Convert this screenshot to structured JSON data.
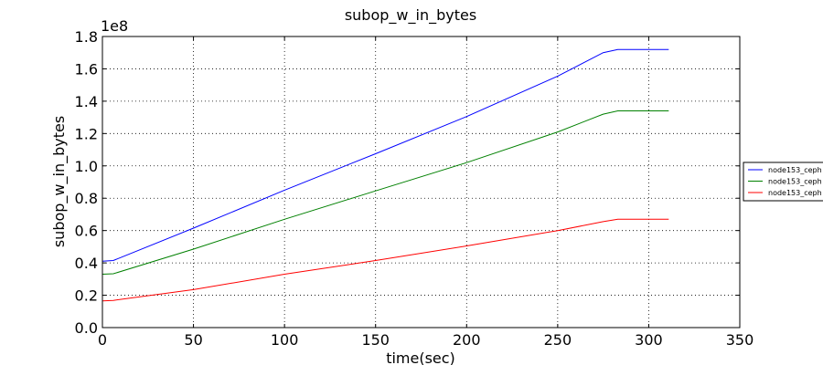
{
  "chart_data": {
    "type": "line",
    "title": "subop_w_in_bytes",
    "xlabel": "time(sec)",
    "ylabel": "subop_w_in_bytes",
    "y_offset_label": "1e8",
    "xlim": [
      0,
      350
    ],
    "ylim": [
      0,
      180000000
    ],
    "x_ticks": [
      0,
      50,
      100,
      150,
      200,
      250,
      300,
      350
    ],
    "x_tick_labels": [
      "0",
      "50",
      "100",
      "150",
      "200",
      "250",
      "300",
      "350"
    ],
    "y_ticks": [
      0,
      20000000,
      40000000,
      60000000,
      80000000,
      100000000,
      120000000,
      140000000,
      160000000,
      180000000
    ],
    "y_tick_labels": [
      "0.0",
      "0.2",
      "0.4",
      "0.6",
      "0.8",
      "1.0",
      "1.2",
      "1.4",
      "1.6",
      "1.8"
    ],
    "grid": true,
    "legend_position": "right",
    "series": [
      {
        "name": "node153_ceph",
        "color": "#0000ff",
        "points": [
          [
            0,
            41000000
          ],
          [
            6,
            41500000
          ],
          [
            50,
            61500000
          ],
          [
            100,
            85000000
          ],
          [
            150,
            107500000
          ],
          [
            200,
            130500000
          ],
          [
            250,
            155500000
          ],
          [
            275,
            170000000
          ],
          [
            283,
            172000000
          ],
          [
            311,
            172000000
          ]
        ]
      },
      {
        "name": "node153_ceph",
        "color": "#008000",
        "points": [
          [
            0,
            33000000
          ],
          [
            6,
            33300000
          ],
          [
            50,
            48500000
          ],
          [
            100,
            67000000
          ],
          [
            150,
            84500000
          ],
          [
            200,
            102000000
          ],
          [
            250,
            121000000
          ],
          [
            275,
            132000000
          ],
          [
            283,
            134000000
          ],
          [
            311,
            134000000
          ]
        ]
      },
      {
        "name": "node153_ceph",
        "color": "#ff0000",
        "points": [
          [
            0,
            16500000
          ],
          [
            6,
            16800000
          ],
          [
            50,
            23500000
          ],
          [
            100,
            33000000
          ],
          [
            150,
            41500000
          ],
          [
            200,
            50500000
          ],
          [
            250,
            60000000
          ],
          [
            275,
            65500000
          ],
          [
            283,
            67000000
          ],
          [
            311,
            67000000
          ]
        ]
      }
    ]
  }
}
